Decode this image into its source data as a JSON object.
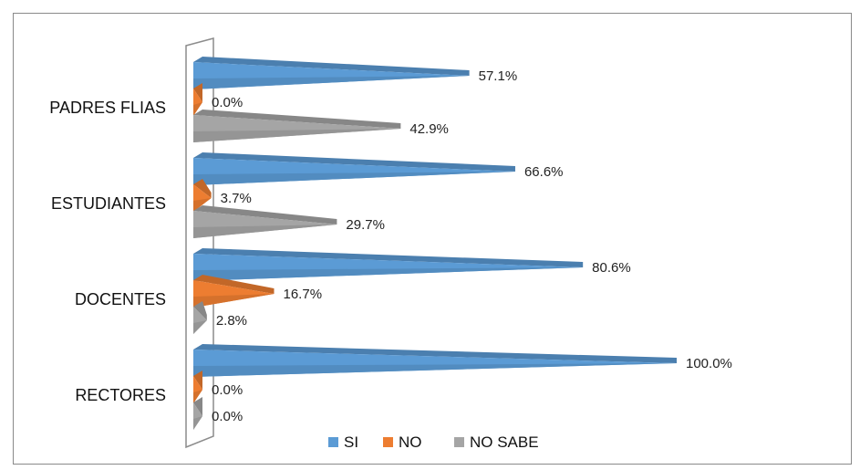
{
  "chart_data": {
    "type": "bar",
    "orientation": "horizontal",
    "style": "3d-cone",
    "categories": [
      "PADRES FLIAS",
      "ESTUDIANTES",
      "DOCENTES",
      "RECTORES"
    ],
    "series": [
      {
        "name": "SI",
        "color": "#5b9bd5",
        "values": [
          57.1,
          66.6,
          80.6,
          100.0
        ],
        "labels": [
          "57.1%",
          "66.6%",
          "80.6%",
          "100.0%"
        ]
      },
      {
        "name": "NO",
        "color": "#ed7d31",
        "values": [
          0.0,
          3.7,
          16.7,
          0.0
        ],
        "labels": [
          "0.0%",
          "3.7%",
          "16.7%",
          "0.0%"
        ]
      },
      {
        "name": "NO SABE",
        "color": "#a5a5a5",
        "values": [
          42.9,
          29.7,
          2.8,
          0.0
        ],
        "labels": [
          "42.9%",
          "29.7%",
          "2.8%",
          "0.0%"
        ]
      }
    ],
    "xlim": [
      0,
      100
    ],
    "grid": false,
    "legend_position": "bottom"
  }
}
